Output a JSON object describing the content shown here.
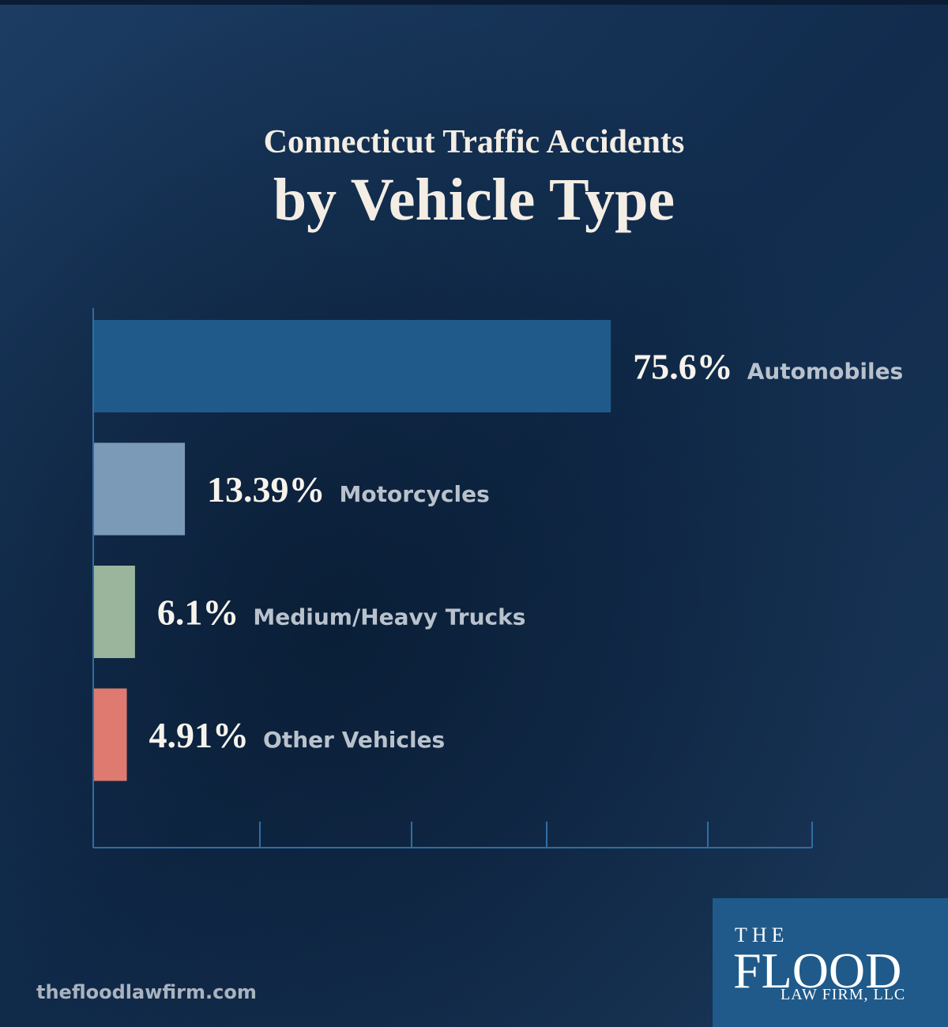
{
  "chart_data": {
    "type": "bar",
    "orientation": "horizontal",
    "title": "Connecticut Traffic Accidents",
    "subtitle": "by Vehicle Type",
    "categories": [
      "Automobiles",
      "Motorcycles",
      "Medium/Heavy Trucks",
      "Other Vehicles"
    ],
    "values": [
      75.6,
      13.39,
      6.1,
      4.91
    ],
    "value_labels": [
      "75.6%",
      "13.39%",
      "6.1%",
      "4.91%"
    ],
    "colors": [
      "#1f5a8a",
      "#7b9ab8",
      "#9ab59c",
      "#df7a70"
    ],
    "xlim": [
      0,
      105
    ]
  },
  "footer": {
    "website": "thefloodlawfirm.com",
    "logo": {
      "line1": "THE",
      "line2": "FLOOD",
      "line3": "LAW FIRM, LLC"
    }
  }
}
